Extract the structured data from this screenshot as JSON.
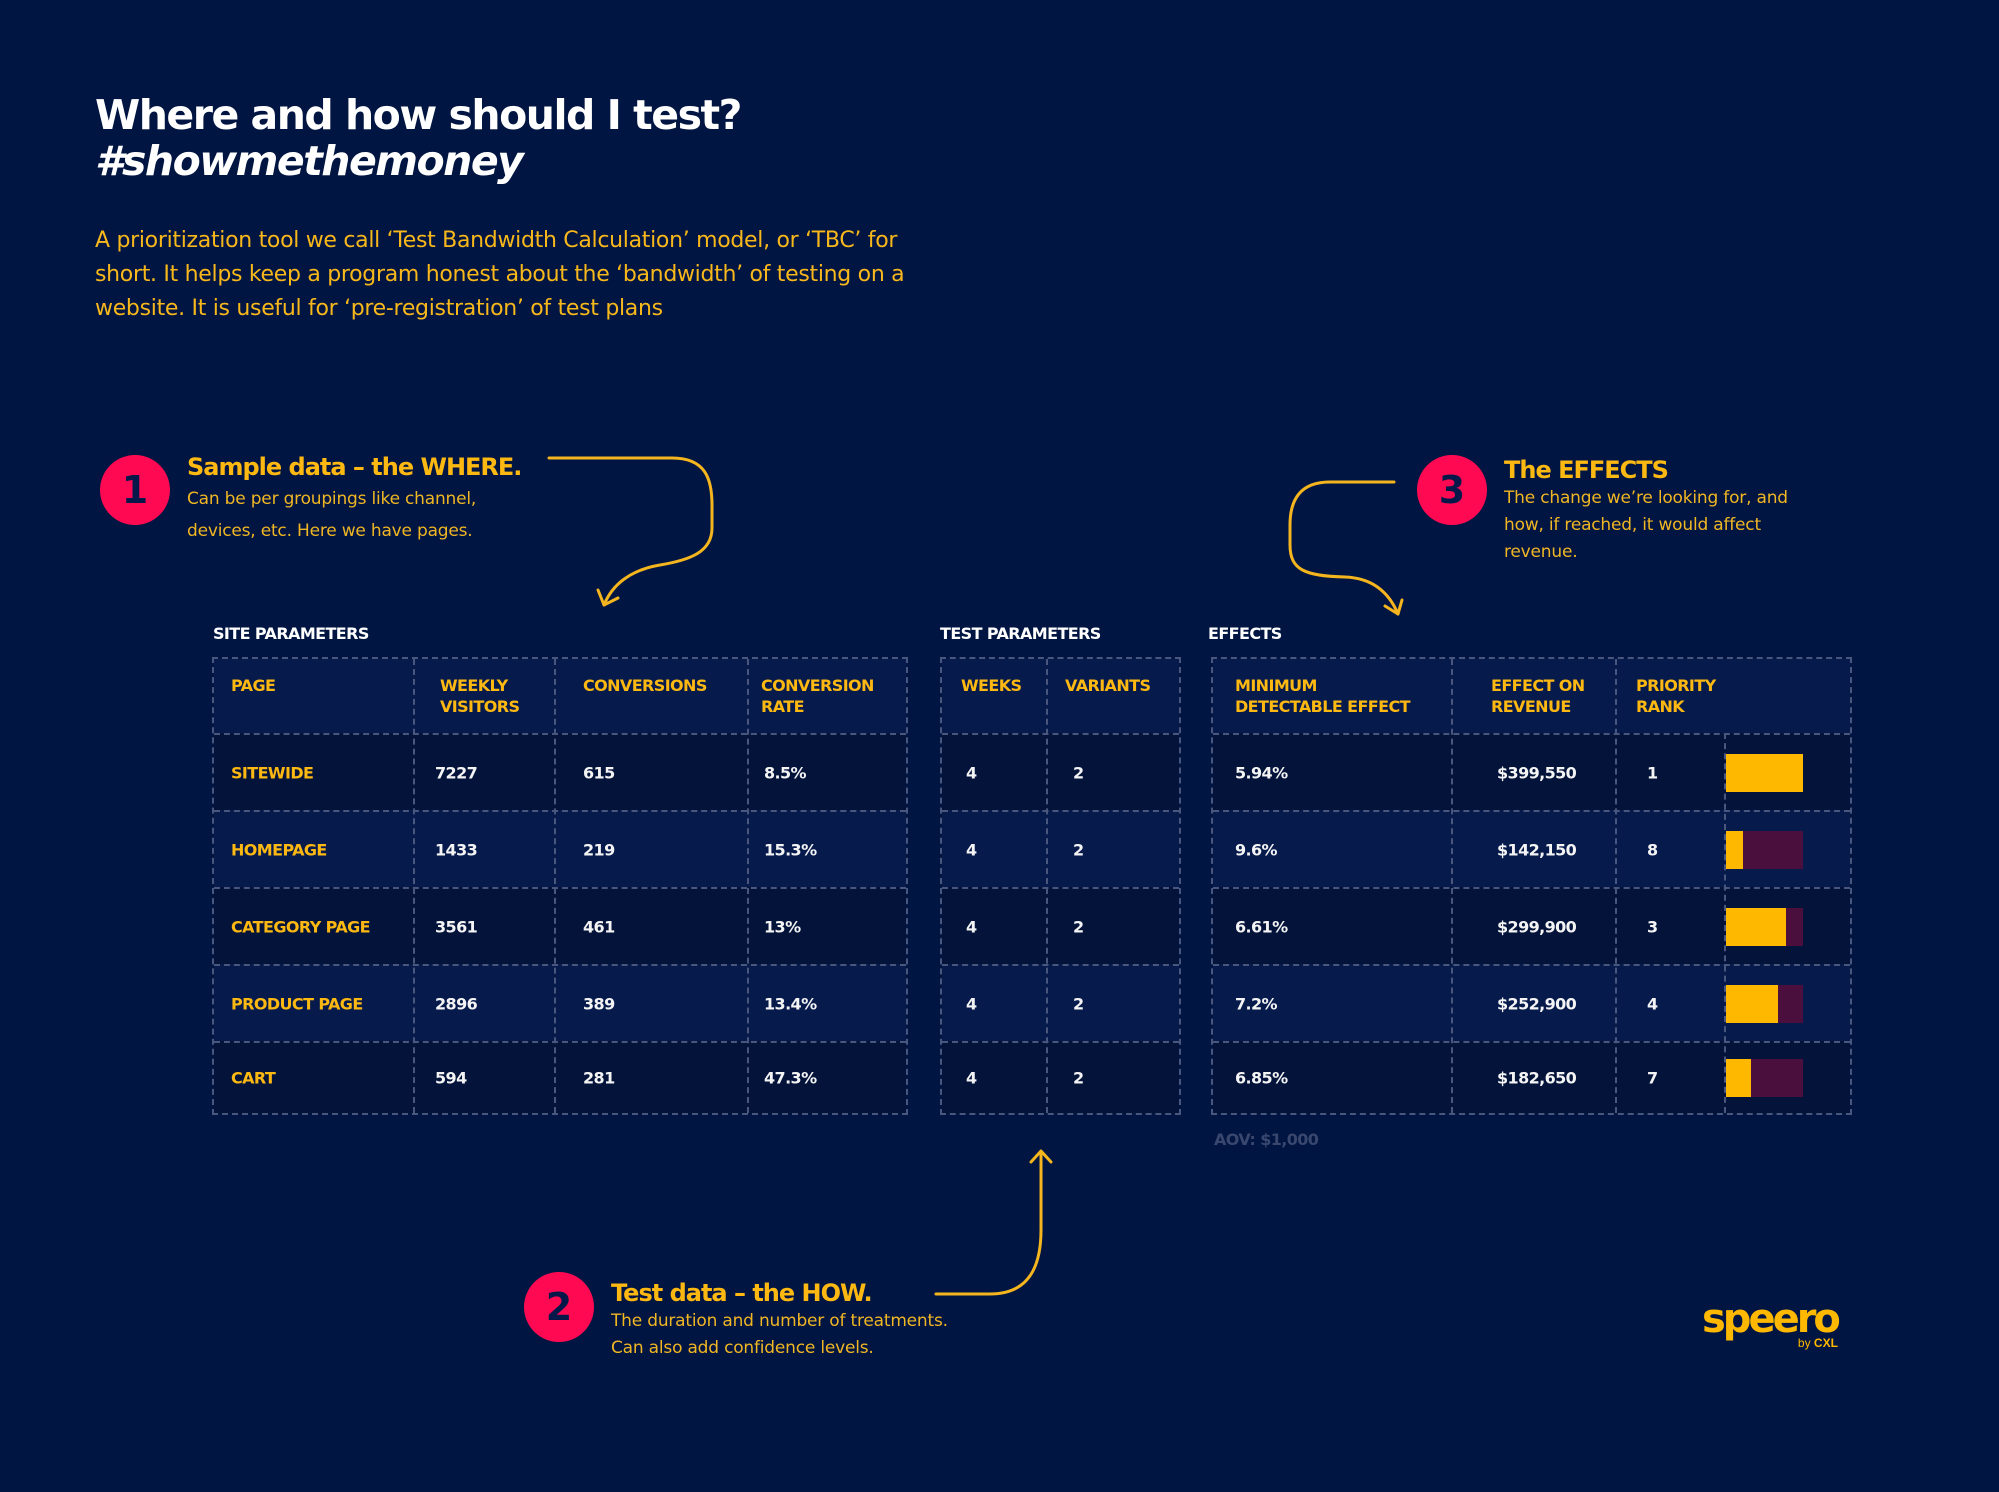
{
  "header": {
    "title": "Where and how should I test?",
    "hashtag": "#showmethemoney",
    "intro": "A prioritization tool we call ‘Test Bandwidth Calculation’ model, or ‘TBC’ for short. It helps keep a program honest about the ‘bandwidth’ of testing on a website. It is useful for ‘pre-registration’ of test plans"
  },
  "callouts": [
    {
      "number": "1",
      "title": "Sample data – the WHERE.",
      "body_line1": "Can be per groupings like channel,",
      "body_line2": "devices, etc.  Here we have pages."
    },
    {
      "number": "2",
      "title": "Test data – the HOW.",
      "body_line1": "The duration and number of treatments.",
      "body_line2": "Can also add confidence levels."
    },
    {
      "number": "3",
      "title": "The EFFECTS",
      "body_line1": "The change we’re looking for, and",
      "body_line2": "how, if reached, it would affect",
      "body_line3": "revenue."
    }
  ],
  "site_parameters": {
    "label": "SITE PARAMETERS",
    "columns": [
      "PAGE",
      "WEEKLY VISITORS",
      "CONVERSIONS",
      "CONVERSION RATE"
    ],
    "col_line1": [
      "PAGE",
      "WEEKLY",
      "CONVERSIONS",
      "CONVERSION"
    ],
    "col_line2": [
      "",
      "VISITORS",
      "",
      "RATE"
    ],
    "rows": [
      {
        "page": "SITEWIDE",
        "weekly_visitors": "7227",
        "conversions": "615",
        "conversion_rate": "8.5%"
      },
      {
        "page": "HOMEPAGE",
        "weekly_visitors": "1433",
        "conversions": "219",
        "conversion_rate": "15.3%"
      },
      {
        "page": "CATEGORY PAGE",
        "weekly_visitors": "3561",
        "conversions": "461",
        "conversion_rate": "13%"
      },
      {
        "page": "PRODUCT PAGE",
        "weekly_visitors": "2896",
        "conversions": "389",
        "conversion_rate": "13.4%"
      },
      {
        "page": "CART",
        "weekly_visitors": "594",
        "conversions": "281",
        "conversion_rate": "47.3%"
      }
    ]
  },
  "test_parameters": {
    "label": "TEST PARAMETERS",
    "columns": [
      "WEEKS",
      "VARIANTS"
    ],
    "rows": [
      {
        "weeks": "4",
        "variants": "2"
      },
      {
        "weeks": "4",
        "variants": "2"
      },
      {
        "weeks": "4",
        "variants": "2"
      },
      {
        "weeks": "4",
        "variants": "2"
      },
      {
        "weeks": "4",
        "variants": "2"
      }
    ]
  },
  "effects": {
    "label": "EFFECTS",
    "columns": [
      "MINIMUM DETECTABLE EFFECT",
      "EFFECT ON REVENUE",
      "PRIORITY RANK"
    ],
    "col_line1": [
      "MINIMUM",
      "EFFECT ON",
      "PRIORITY"
    ],
    "col_line2": [
      "DETECTABLE EFFECT",
      "REVENUE",
      "RANK"
    ],
    "rows": [
      {
        "mde": "5.94%",
        "revenue": "$399,550",
        "rank": "1",
        "bar_fill_pct": 100
      },
      {
        "mde": "9.6%",
        "revenue": "$142,150",
        "rank": "8",
        "bar_fill_pct": 22
      },
      {
        "mde": "6.61%",
        "revenue": "$299,900",
        "rank": "3",
        "bar_fill_pct": 78
      },
      {
        "mde": "7.2%",
        "revenue": "$252,900",
        "rank": "4",
        "bar_fill_pct": 67
      },
      {
        "mde": "6.85%",
        "revenue": "$182,650",
        "rank": "7",
        "bar_fill_pct": 33
      }
    ],
    "aov_note": "AOV: $1,000"
  },
  "logo": {
    "name": "speero",
    "sub_prefix": "by ",
    "sub_brand": "CXL"
  },
  "colors": {
    "background": "#001541",
    "accent_yellow": "#fdb812",
    "badge_pink": "#ff0a52",
    "bar_fill": "#ffb800",
    "bar_track": "#4a0f3d",
    "grid_line": "#49577e"
  }
}
